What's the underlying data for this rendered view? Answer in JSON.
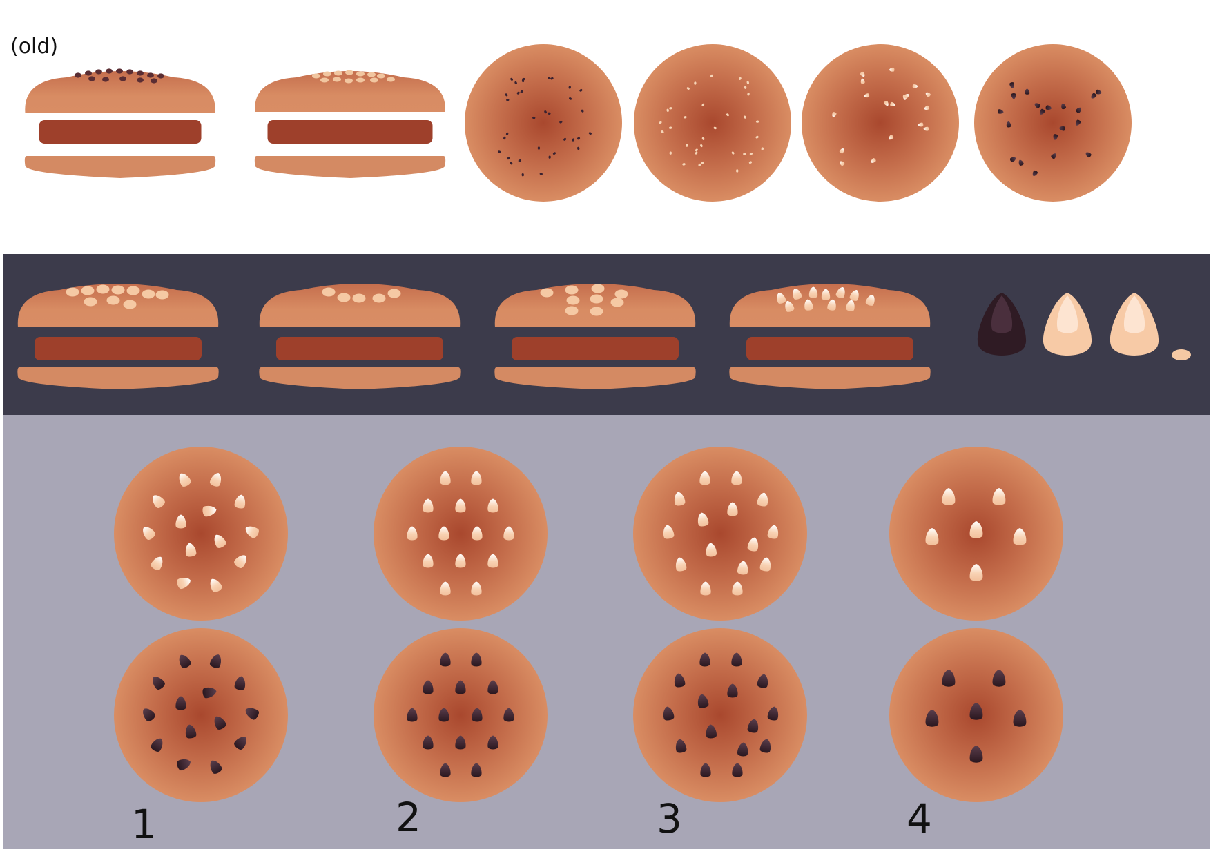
{
  "labels": {
    "old": "(old)",
    "variants": [
      "1",
      "2",
      "3",
      "4"
    ]
  },
  "colors": {
    "white_background": "#ffffff",
    "dark_band": "#3c3b4b",
    "gray_band": "#a8a6b6",
    "bun": "#d48a63",
    "bun_center": "#a9482e",
    "patty": "#9e402b",
    "sesame_light": "#f5c9a4",
    "sesame_dark": "#2e1a22"
  },
  "icons": {
    "side_burger": "burger-side-icon",
    "top_bun": "bun-top-view-icon",
    "dark_seed": "dark-sesame-seed-icon",
    "light_seed": "light-sesame-seed-icon",
    "flat_seed": "flat-seed-icon"
  }
}
